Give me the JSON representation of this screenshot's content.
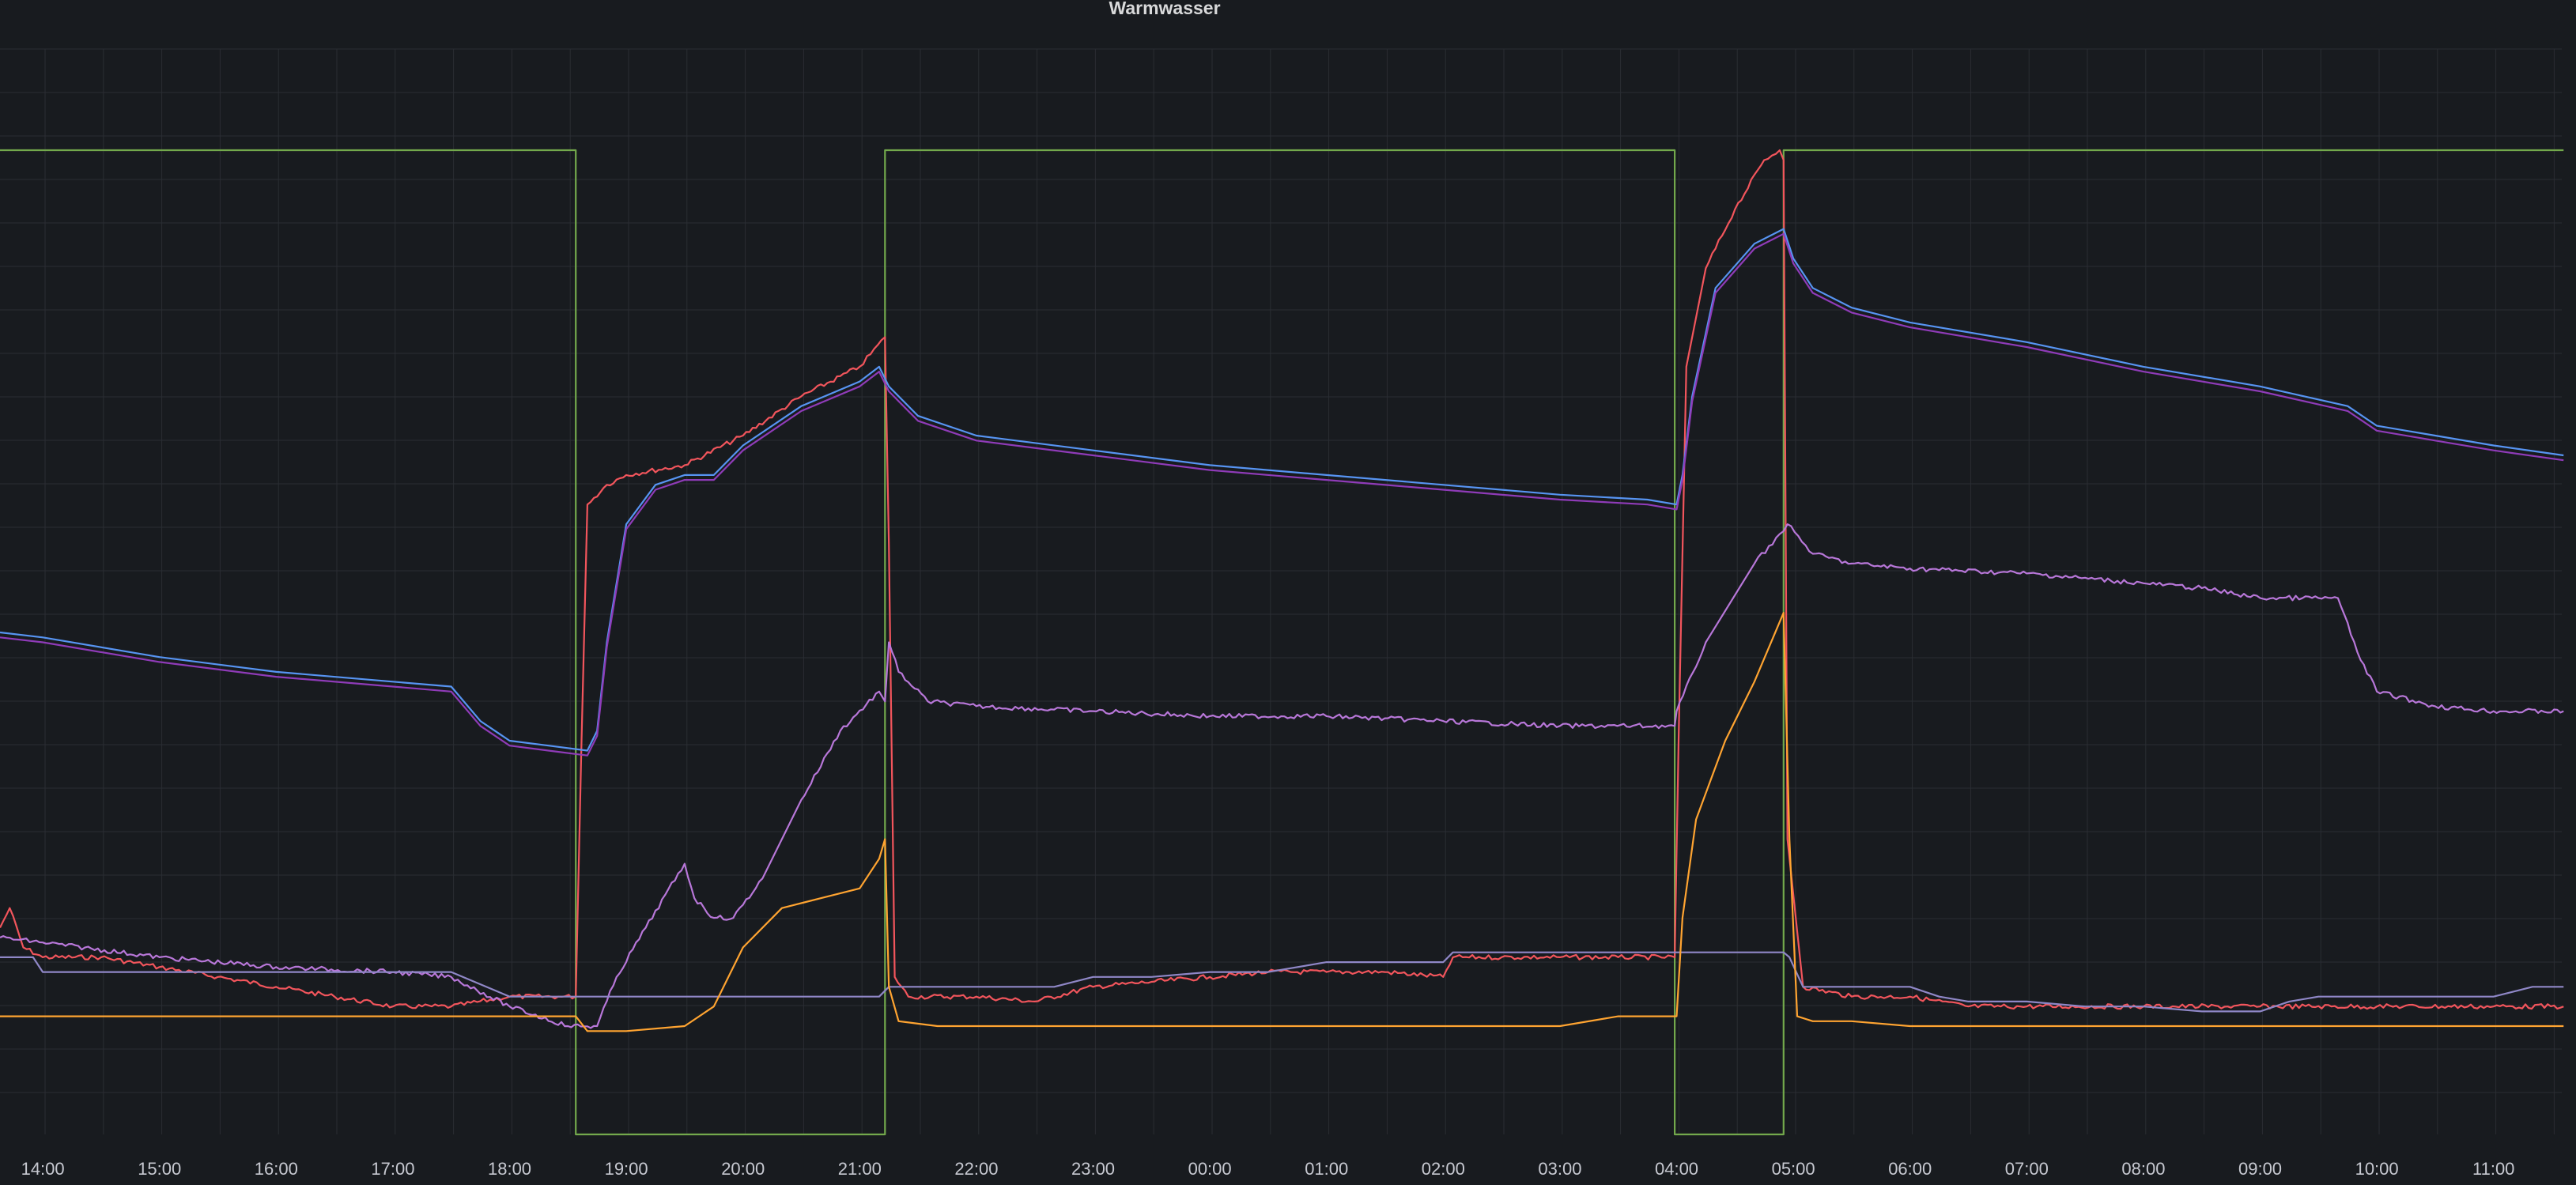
{
  "panel": {
    "title": "Warmwasser"
  },
  "chart_data": {
    "type": "line",
    "title": "Warmwasser",
    "xlabel": "",
    "ylabel": "",
    "grid": true,
    "legend": "none",
    "x_ticks": [
      "14:00",
      "15:00",
      "16:00",
      "17:00",
      "18:00",
      "19:00",
      "20:00",
      "21:00",
      "22:00",
      "23:00",
      "00:00",
      "01:00",
      "02:00",
      "03:00",
      "04:00",
      "05:00",
      "06:00",
      "07:00",
      "08:00",
      "09:00",
      "10:00",
      "11:00"
    ],
    "x_range": [
      "13:38",
      "11:36"
    ],
    "y_range": [
      0,
      100
    ],
    "series": [
      {
        "color": "#73a94c",
        "shape": "step",
        "x": [
          "13:38",
          "18:34",
          "18:34",
          "21:13",
          "21:13",
          "03:59",
          "03:59",
          "04:55",
          "04:55",
          "11:36"
        ],
        "values": [
          100,
          100,
          0,
          0,
          100,
          100,
          0,
          0,
          100,
          100
        ]
      },
      {
        "color": "#f2555c",
        "noisy": true,
        "x": [
          "13:38",
          "13:43",
          "13:50",
          "14:00",
          "14:30",
          "15:00",
          "15:30",
          "16:00",
          "16:30",
          "17:00",
          "17:30",
          "18:00",
          "18:25",
          "18:34",
          "18:37",
          "18:40",
          "18:50",
          "19:00",
          "19:30",
          "20:00",
          "20:30",
          "21:00",
          "21:13",
          "21:15",
          "21:18",
          "21:25",
          "22:00",
          "22:30",
          "23:00",
          "23:30",
          "00:00",
          "00:30",
          "01:00",
          "01:30",
          "02:00",
          "02:05",
          "02:30",
          "03:00",
          "03:30",
          "03:59",
          "04:01",
          "04:05",
          "04:15",
          "04:30",
          "04:45",
          "04:53",
          "04:55",
          "04:57",
          "05:05",
          "05:30",
          "06:00",
          "06:30",
          "07:00",
          "08:00",
          "09:00",
          "10:00",
          "11:00",
          "11:36"
        ],
        "values": [
          21,
          23,
          19,
          18,
          18,
          17,
          16,
          15,
          14,
          13,
          13,
          14,
          14,
          14,
          40,
          64,
          66,
          67,
          68,
          71,
          75,
          78,
          81,
          60,
          16,
          14,
          14,
          13.5,
          15,
          15.5,
          16,
          16.5,
          16.5,
          16.5,
          16,
          18,
          18,
          18,
          18,
          18,
          40,
          78,
          88,
          94,
          99,
          100,
          99,
          30,
          15,
          14,
          14,
          13,
          13,
          13,
          13,
          13,
          13,
          13
        ]
      },
      {
        "color": "#5794f2",
        "x": [
          "13:38",
          "14:00",
          "15:00",
          "16:00",
          "17:00",
          "17:30",
          "17:45",
          "18:00",
          "18:20",
          "18:40",
          "18:45",
          "18:50",
          "19:00",
          "19:15",
          "19:30",
          "19:45",
          "20:00",
          "20:30",
          "21:00",
          "21:10",
          "21:15",
          "21:30",
          "22:00",
          "23:00",
          "00:00",
          "01:00",
          "02:00",
          "03:00",
          "03:45",
          "04:00",
          "04:03",
          "04:08",
          "04:20",
          "04:40",
          "04:55",
          "05:00",
          "05:10",
          "05:30",
          "06:00",
          "07:00",
          "08:00",
          "09:00",
          "09:45",
          "10:00",
          "10:30",
          "11:00",
          "11:36"
        ],
        "values": [
          51,
          50.5,
          48.5,
          47,
          46,
          45.5,
          42,
          40,
          39.5,
          39,
          41,
          50,
          62,
          66,
          67,
          67,
          70,
          74,
          76.5,
          78,
          76,
          73,
          71,
          69.5,
          68,
          67,
          66,
          65,
          64.5,
          64,
          67,
          75,
          86,
          90.5,
          92,
          89,
          86,
          84,
          82.5,
          80.5,
          78,
          76,
          74,
          72,
          71,
          70,
          69
        ]
      },
      {
        "color": "#8f3bb8",
        "x": [
          "13:38",
          "14:00",
          "15:00",
          "16:00",
          "17:00",
          "17:30",
          "17:45",
          "18:00",
          "18:20",
          "18:40",
          "18:45",
          "18:50",
          "19:00",
          "19:15",
          "19:30",
          "19:45",
          "20:00",
          "20:30",
          "21:00",
          "21:10",
          "21:15",
          "21:30",
          "22:00",
          "23:00",
          "00:00",
          "01:00",
          "02:00",
          "03:00",
          "03:45",
          "04:00",
          "04:03",
          "04:08",
          "04:20",
          "04:40",
          "04:55",
          "05:00",
          "05:10",
          "05:30",
          "06:00",
          "07:00",
          "08:00",
          "09:00",
          "09:45",
          "10:00",
          "10:30",
          "11:00",
          "11:36"
        ],
        "values": [
          50.5,
          50,
          48,
          46.5,
          45.5,
          45,
          41.5,
          39.5,
          39,
          38.5,
          40.5,
          49.5,
          61.5,
          65.5,
          66.5,
          66.5,
          69.5,
          73.5,
          76,
          77.5,
          75.5,
          72.5,
          70.5,
          69,
          67.5,
          66.5,
          65.5,
          64.5,
          64,
          63.5,
          66.5,
          74.5,
          85.5,
          90,
          91.5,
          88.5,
          85.5,
          83.5,
          82,
          80,
          77.5,
          75.5,
          73.5,
          71.5,
          70.5,
          69.5,
          68.5
        ]
      },
      {
        "color": "#b877d9",
        "noisy": true,
        "x": [
          "13:38",
          "14:00",
          "15:00",
          "16:00",
          "17:00",
          "17:30",
          "18:00",
          "18:30",
          "18:45",
          "18:55",
          "19:10",
          "19:30",
          "19:35",
          "19:45",
          "19:55",
          "20:10",
          "20:30",
          "20:50",
          "21:10",
          "21:13",
          "21:15",
          "21:20",
          "21:35",
          "22:00",
          "23:00",
          "00:00",
          "01:00",
          "02:00",
          "03:00",
          "03:59",
          "04:00",
          "04:15",
          "04:40",
          "04:53",
          "04:57",
          "05:10",
          "05:30",
          "06:00",
          "07:00",
          "08:00",
          "08:30",
          "09:00",
          "09:30",
          "09:40",
          "09:50",
          "10:00",
          "10:30",
          "11:00",
          "11:36"
        ],
        "values": [
          20,
          19.5,
          18,
          17,
          16.5,
          16,
          13,
          11,
          11,
          16,
          21,
          27.5,
          24,
          22,
          22,
          26,
          34,
          41,
          45,
          44,
          50,
          47,
          44,
          43.5,
          43,
          42.5,
          42.5,
          42,
          41.5,
          41.5,
          43,
          50,
          58,
          61,
          62,
          59,
          58,
          57.5,
          57,
          56,
          55.5,
          54.5,
          54.5,
          54.5,
          49,
          45,
          43.5,
          43,
          43
        ]
      },
      {
        "color": "#8f87c7",
        "x": [
          "13:38",
          "13:55",
          "14:00",
          "14:30",
          "15:00",
          "16:00",
          "17:00",
          "17:30",
          "18:00",
          "18:30",
          "18:40",
          "19:00",
          "20:00",
          "21:00",
          "21:10",
          "21:15",
          "21:30",
          "22:00",
          "22:40",
          "23:00",
          "23:30",
          "00:00",
          "00:30",
          "01:00",
          "01:30",
          "02:00",
          "02:05",
          "02:30",
          "03:00",
          "03:30",
          "04:00",
          "04:55",
          "04:58",
          "05:05",
          "05:30",
          "06:00",
          "06:15",
          "06:30",
          "07:00",
          "07:30",
          "08:00",
          "08:30",
          "09:00",
          "09:15",
          "09:30",
          "10:00",
          "11:00",
          "11:20",
          "11:36"
        ],
        "values": [
          18,
          18,
          16.5,
          16.5,
          16.5,
          16.5,
          16.5,
          16.5,
          14,
          14,
          14,
          14,
          14,
          14,
          14,
          15,
          15,
          15,
          15,
          16,
          16,
          16.5,
          16.5,
          17.5,
          17.5,
          17.5,
          18.5,
          18.5,
          18.5,
          18.5,
          18.5,
          18.5,
          18,
          15,
          15,
          15,
          14,
          13.5,
          13.5,
          13,
          13,
          12.5,
          12.5,
          13.5,
          14,
          14,
          14,
          15,
          15
        ]
      },
      {
        "color": "#ffa431",
        "x": [
          "13:38",
          "14:00",
          "15:00",
          "16:00",
          "17:00",
          "18:00",
          "18:30",
          "18:34",
          "18:40",
          "19:00",
          "19:30",
          "19:45",
          "20:00",
          "20:20",
          "20:40",
          "21:00",
          "21:10",
          "21:13",
          "21:15",
          "21:20",
          "21:40",
          "22:00",
          "23:00",
          "00:00",
          "01:00",
          "02:00",
          "03:00",
          "03:30",
          "03:59",
          "04:00",
          "04:03",
          "04:10",
          "04:25",
          "04:40",
          "04:55",
          "04:58",
          "05:02",
          "05:10",
          "05:30",
          "06:00",
          "06:30",
          "07:00",
          "08:00",
          "09:00",
          "10:00",
          "11:00",
          "11:36"
        ],
        "values": [
          12,
          12,
          12,
          12,
          12,
          12,
          12,
          12,
          10.5,
          10.5,
          11,
          13,
          19,
          23,
          24,
          25,
          28,
          30,
          15,
          11.5,
          11,
          11,
          11,
          11,
          11,
          11,
          11,
          12,
          12,
          12,
          22,
          32,
          40,
          46,
          53,
          30,
          12,
          11.5,
          11.5,
          11,
          11,
          11,
          11,
          11,
          11,
          11,
          11
        ]
      }
    ]
  }
}
